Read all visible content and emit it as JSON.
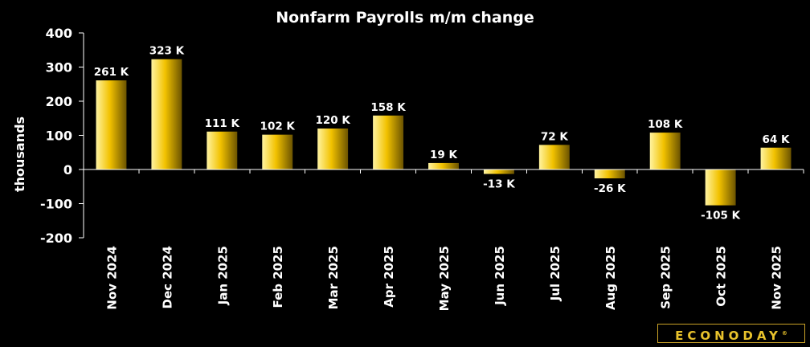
{
  "brand": {
    "logo_text": "ECONODAY",
    "mark": "®"
  },
  "chart_data": {
    "type": "bar",
    "title": "Nonfarm Payrolls m/m change",
    "xlabel": "",
    "ylabel": "thousands",
    "ylim": [
      -200,
      400
    ],
    "yticks": [
      400,
      300,
      200,
      100,
      0,
      -100,
      -200
    ],
    "categories": [
      "Nov 2024",
      "Dec 2024",
      "Jan 2025",
      "Feb 2025",
      "Mar 2025",
      "Apr 2025",
      "May 2025",
      "Jun 2025",
      "Jul 2025",
      "Aug 2025",
      "Sep 2025",
      "Oct 2025",
      "Nov 2025"
    ],
    "values": [
      261,
      323,
      111,
      102,
      120,
      158,
      19,
      -13,
      72,
      -26,
      108,
      -105,
      64
    ],
    "data_labels": [
      "261 K",
      "323 K",
      "111 K",
      "102 K",
      "120 K",
      "158 K",
      "19 K",
      "-13 K",
      "72 K",
      "-26 K",
      "108 K",
      "-105 K",
      "64 K"
    ],
    "bar_color": "#f2c200",
    "background": "#000000",
    "grid": false,
    "legend": "none"
  }
}
